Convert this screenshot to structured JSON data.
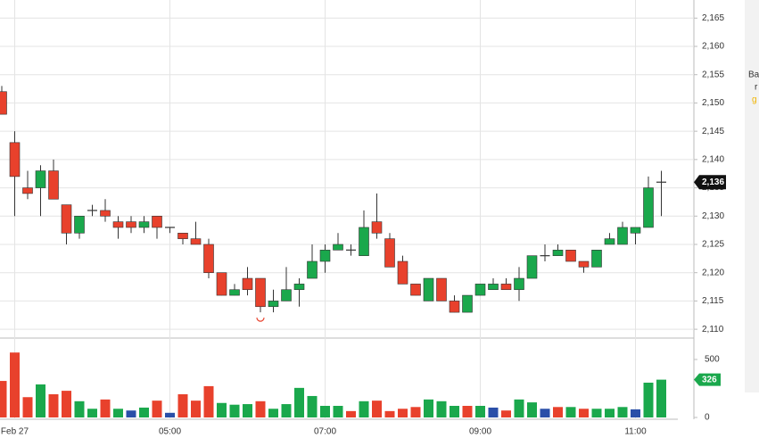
{
  "chart_data": {
    "type": "candlestick",
    "categories": [
      null,
      "Feb 27",
      null,
      null,
      null,
      null,
      null,
      null,
      null,
      null,
      null,
      null,
      null,
      "05:00",
      null,
      null,
      null,
      null,
      null,
      null,
      null,
      null,
      null,
      null,
      null,
      "07:00",
      null,
      null,
      null,
      null,
      null,
      null,
      null,
      null,
      null,
      null,
      null,
      "09:00",
      null,
      null,
      null,
      null,
      null,
      null,
      null,
      null,
      null,
      null,
      null,
      "11:00",
      null,
      null
    ],
    "open": [
      2152,
      2143,
      2135,
      2135,
      2138,
      2132,
      2127,
      2131,
      2131,
      2129,
      2129,
      2128,
      2130,
      2128,
      2127,
      2126,
      2125,
      2120,
      2116,
      2119,
      2119,
      2114,
      2115,
      2117,
      2119,
      2122,
      2124,
      2124,
      2123,
      2129,
      2126,
      2122,
      2118,
      2115,
      2119,
      2115,
      2113,
      2116,
      2117,
      2118,
      2117,
      2119,
      2123,
      2123,
      2124,
      2122,
      2121,
      2125,
      2125,
      2127,
      2128,
      2136
    ],
    "high": [
      2153,
      2145,
      2138,
      2139,
      2140,
      2132,
      2130,
      2132,
      2133,
      2130,
      2130,
      2130,
      2130,
      2128,
      2127,
      2129,
      2126,
      2120,
      2118,
      2121,
      2119,
      2117,
      2121,
      2119,
      2125,
      2125,
      2127,
      2125,
      2131,
      2134,
      2127,
      2123,
      2118,
      2119,
      2119,
      2116,
      2116,
      2118,
      2119,
      2119,
      2121,
      2123,
      2125,
      2125,
      2124,
      2122,
      2124,
      2127,
      2129,
      2128,
      2137,
      2138
    ],
    "low": [
      2148,
      2130,
      2133,
      2130,
      2133,
      2125,
      2126,
      2130,
      2129,
      2126,
      2127,
      2127,
      2126,
      2127,
      2125,
      2125,
      2119,
      2116,
      2116,
      2116,
      2113,
      2113,
      2115,
      2114,
      2119,
      2120,
      2124,
      2123,
      2123,
      2126,
      2121,
      2118,
      2116,
      2115,
      2115,
      2113,
      2113,
      2116,
      2117,
      2117,
      2115,
      2119,
      2122,
      2123,
      2122,
      2120,
      2121,
      2125,
      2125,
      2125,
      2128,
      2130
    ],
    "close": [
      2148,
      2137,
      2134,
      2138,
      2133,
      2127,
      2130,
      2131,
      2130,
      2128,
      2128,
      2129,
      2128,
      2128,
      2126,
      2125,
      2120,
      2116,
      2117,
      2117,
      2114,
      2115,
      2117,
      2118,
      2122,
      2124,
      2125,
      2124,
      2128,
      2127,
      2121,
      2118,
      2116,
      2119,
      2115,
      2113,
      2116,
      2118,
      2118,
      2117,
      2119,
      2123,
      2123,
      2124,
      2122,
      2121,
      2124,
      2126,
      2128,
      2128,
      2135,
      2136
    ],
    "up_color": "#1aa84c",
    "down_color": "#e8412c",
    "ylim": [
      2108.6,
      2168.2
    ],
    "yticks": [
      {
        "value": 2110,
        "label": "2,110"
      },
      {
        "value": 2115,
        "label": "2,115"
      },
      {
        "value": 2120,
        "label": "2,120"
      },
      {
        "value": 2125,
        "label": "2,125"
      },
      {
        "value": 2130,
        "label": "2,130"
      },
      {
        "value": 2135,
        "label": "2,135"
      },
      {
        "value": 2140,
        "label": "2,140"
      },
      {
        "value": 2145,
        "label": "2,145"
      },
      {
        "value": 2150,
        "label": "2,150"
      },
      {
        "value": 2155,
        "label": "2,155"
      },
      {
        "value": 2160,
        "label": "2,160"
      },
      {
        "value": 2165,
        "label": "2,165"
      }
    ],
    "last_price": {
      "value": 2136,
      "label": "2,136"
    },
    "volume": {
      "values": [
        315,
        560,
        175,
        285,
        200,
        230,
        140,
        75,
        155,
        75,
        60,
        85,
        145,
        40,
        200,
        145,
        270,
        125,
        110,
        115,
        140,
        75,
        115,
        255,
        185,
        100,
        100,
        55,
        140,
        145,
        55,
        75,
        90,
        155,
        140,
        100,
        100,
        100,
        85,
        60,
        155,
        130,
        75,
        90,
        90,
        75,
        75,
        75,
        90,
        70,
        300,
        326
      ],
      "colors": [
        "#e8412c",
        "#e8412c",
        "#e8412c",
        "#1aa84c",
        "#e8412c",
        "#e8412c",
        "#1aa84c",
        "#1aa84c",
        "#e8412c",
        "#1aa84c",
        "#2a4fa8",
        "#1aa84c",
        "#e8412c",
        "#2a4fa8",
        "#e8412c",
        "#e8412c",
        "#e8412c",
        "#1aa84c",
        "#1aa84c",
        "#1aa84c",
        "#e8412c",
        "#1aa84c",
        "#1aa84c",
        "#1aa84c",
        "#1aa84c",
        "#1aa84c",
        "#1aa84c",
        "#e8412c",
        "#1aa84c",
        "#e8412c",
        "#e8412c",
        "#e8412c",
        "#e8412c",
        "#1aa84c",
        "#1aa84c",
        "#1aa84c",
        "#e8412c",
        "#1aa84c",
        "#2a4fa8",
        "#e8412c",
        "#1aa84c",
        "#1aa84c",
        "#2a4fa8",
        "#e8412c",
        "#1aa84c",
        "#e8412c",
        "#1aa84c",
        "#1aa84c",
        "#1aa84c",
        "#2a4fa8",
        "#1aa84c",
        "#1aa84c"
      ],
      "ylim": [
        0,
        677
      ],
      "yticks": [
        0,
        500
      ],
      "last": 326
    },
    "grid": true,
    "side_panel": [
      "Ba",
      "r",
      "g"
    ]
  }
}
